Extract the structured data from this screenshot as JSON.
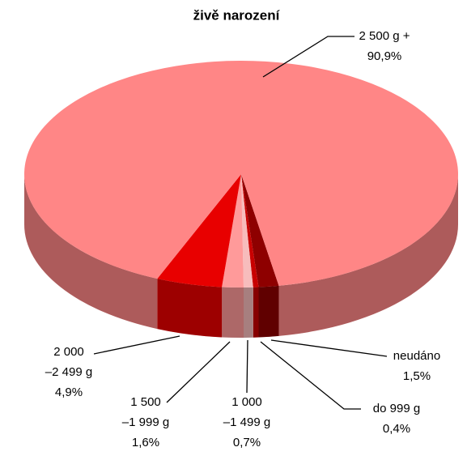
{
  "chart_data": {
    "type": "pie3d",
    "title": "živě narození",
    "categories": [
      [
        "neudáno"
      ],
      [
        "do 999 g"
      ],
      [
        "1 000",
        "–1 499 g"
      ],
      [
        "1 500",
        "–1 999 g"
      ],
      [
        "2 000",
        "–2 499 g"
      ],
      [
        "2 500 g +"
      ]
    ],
    "values": [
      1.5,
      0.4,
      0.7,
      1.6,
      4.9,
      90.9
    ],
    "value_labels": [
      "1,5%",
      "0,4%",
      "0,7%",
      "1,6%",
      "4,9%",
      "90,9%"
    ],
    "colors": [
      "#8e0000",
      "#c80000",
      "#f7bcbc",
      "#ff9a9a",
      "#e80000",
      "#ff8686"
    ]
  }
}
